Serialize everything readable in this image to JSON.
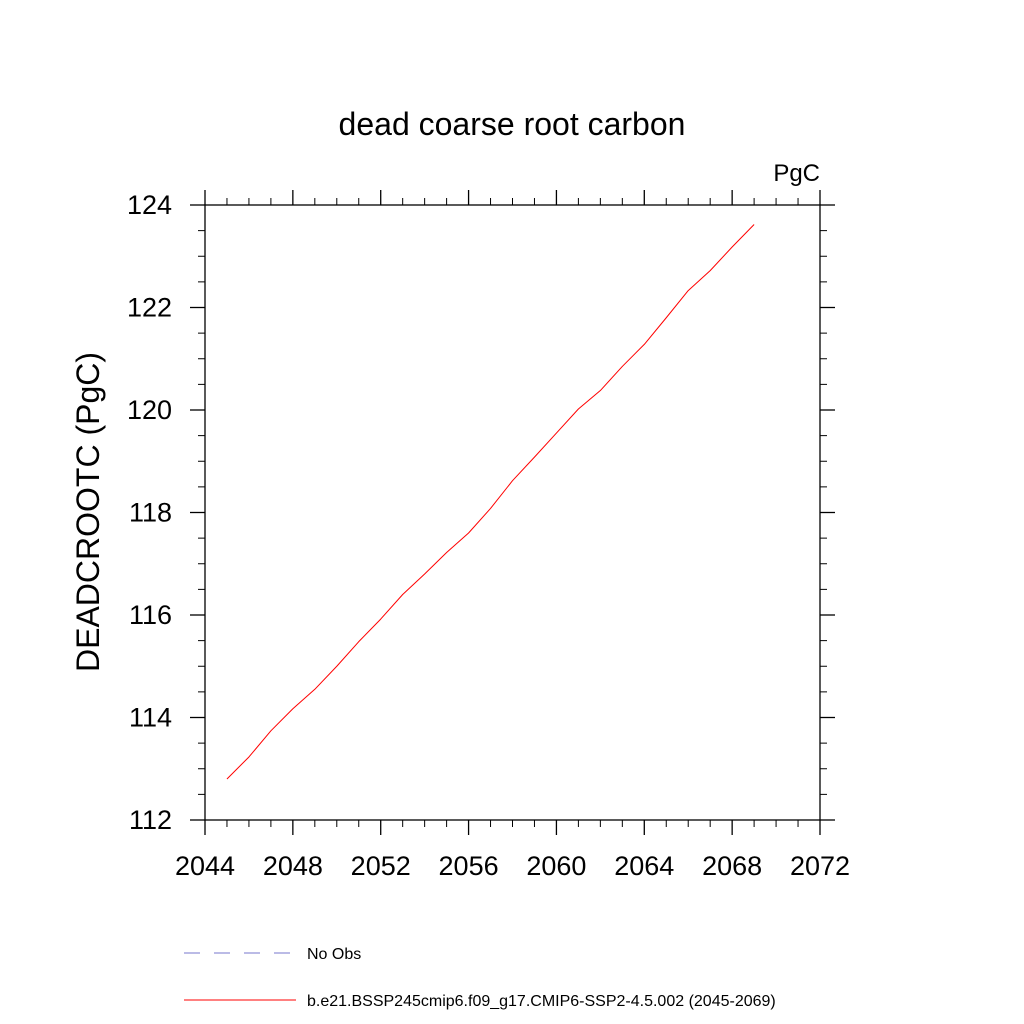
{
  "chart_data": {
    "type": "line",
    "title": "dead coarse root carbon",
    "units_label": "PgC",
    "ylabel": "DEADCROOTC  (PgC)",
    "xlabel": "",
    "xlim": [
      2044,
      2072
    ],
    "ylim": [
      112,
      124
    ],
    "xticks": [
      "2044",
      "2048",
      "2052",
      "2056",
      "2060",
      "2064",
      "2068",
      "2072"
    ],
    "yticks": [
      "112",
      "114",
      "116",
      "118",
      "120",
      "122",
      "124"
    ],
    "grid": false,
    "legend_position": "bottom",
    "series": [
      {
        "name": "b.e21.BSSP245cmip6.f09_g17.CMIP6-SSP2-4.5.002 (2045-2069)",
        "color": "#ff0000",
        "style": "solid",
        "x": [
          2045,
          2046,
          2047,
          2048,
          2049,
          2050,
          2051,
          2052,
          2053,
          2054,
          2055,
          2056,
          2057,
          2058,
          2059,
          2060,
          2061,
          2062,
          2063,
          2064,
          2065,
          2066,
          2067,
          2068,
          2069
        ],
        "y": [
          112.8,
          113.23,
          113.74,
          114.17,
          114.55,
          115.0,
          115.48,
          115.92,
          116.4,
          116.8,
          117.22,
          117.6,
          118.08,
          118.62,
          119.08,
          119.55,
          120.02,
          120.38,
          120.85,
          121.28,
          121.8,
          122.33,
          122.72,
          123.18,
          123.62
        ]
      }
    ],
    "obs_legend": {
      "name": "No Obs",
      "color": "#7777cc",
      "style": "dashed"
    }
  }
}
